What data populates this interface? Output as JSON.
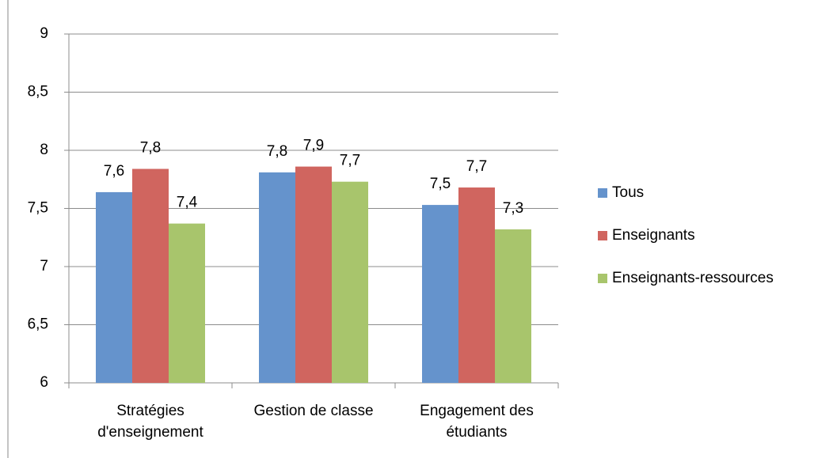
{
  "chart_data": {
    "type": "bar",
    "categories": [
      "Stratégies d'enseignement",
      "Gestion de classe",
      "Engagement des étudiants"
    ],
    "series": [
      {
        "name": "Tous",
        "color": "#6593cc",
        "values": [
          7.64,
          7.81,
          7.53
        ],
        "value_labels": [
          "7,6",
          "7,8",
          "7,5"
        ]
      },
      {
        "name": "Enseignants",
        "color": "#d0655f",
        "values": [
          7.84,
          7.86,
          7.68
        ],
        "value_labels": [
          "7,8",
          "7,9",
          "7,7"
        ]
      },
      {
        "name": "Enseignants-ressources",
        "color": "#a8c56c",
        "values": [
          7.37,
          7.73,
          7.32
        ],
        "value_labels": [
          "7,4",
          "7,7",
          "7,3"
        ]
      }
    ],
    "ylim": [
      6,
      9
    ],
    "yticks": [
      6,
      {
        "value": 6.5,
        "label": "6,5"
      },
      7,
      {
        "value": 7.5,
        "label": "7,5"
      },
      8,
      {
        "value": 8.5,
        "label": "8,5"
      },
      9
    ],
    "grid": true,
    "legend": "right"
  }
}
